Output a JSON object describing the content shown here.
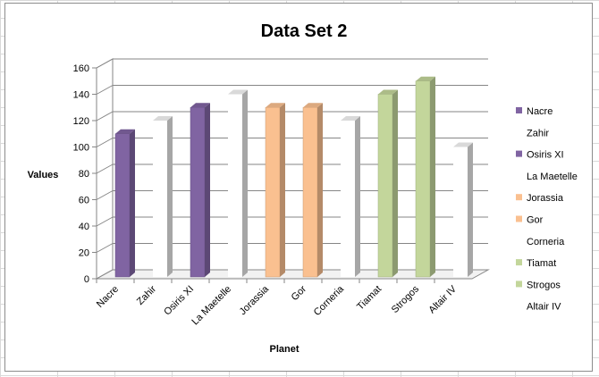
{
  "chart_data": {
    "type": "bar",
    "title": "Data Set 2",
    "xlabel": "Planet",
    "ylabel": "Values",
    "ylim": [
      0,
      160
    ],
    "yticks": [
      0,
      20,
      40,
      60,
      80,
      100,
      120,
      140,
      160
    ],
    "grid": true,
    "legend": "right",
    "categories": [
      "Nacre",
      "Zahir",
      "Osiris XI",
      "La Maetelle",
      "Jorassia",
      "Gor",
      "Corneria",
      "Tiamat",
      "Strogos",
      "Altair IV"
    ],
    "values": [
      110,
      120,
      130,
      140,
      130,
      130,
      120,
      140,
      150,
      100
    ],
    "colors": [
      "#8064a2",
      "#ffffff",
      "#8064a2",
      "#ffffff",
      "#fac090",
      "#fac090",
      "#ffffff",
      "#c3d69b",
      "#c3d69b",
      "#ffffff"
    ]
  }
}
